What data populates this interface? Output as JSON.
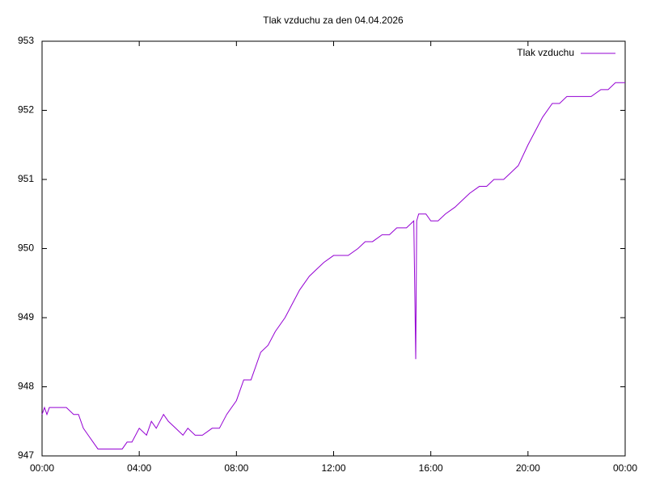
{
  "chart_data": {
    "type": "line",
    "title": "Tlak vzduchu za den 04.04.2026",
    "x": [
      0,
      0.1,
      0.2,
      0.3,
      0.5,
      0.7,
      1.0,
      1.3,
      1.5,
      1.7,
      1.9,
      2.1,
      2.3,
      2.6,
      3.0,
      3.3,
      3.5,
      3.7,
      4.0,
      4.3,
      4.5,
      4.7,
      5.0,
      5.2,
      5.5,
      5.8,
      6.0,
      6.3,
      6.6,
      7.0,
      7.3,
      7.6,
      8.0,
      8.3,
      8.6,
      9.0,
      9.3,
      9.6,
      10.0,
      10.3,
      10.6,
      11.0,
      11.3,
      11.6,
      12.0,
      12.3,
      12.6,
      13.0,
      13.3,
      13.6,
      14.0,
      14.3,
      14.6,
      15.0,
      15.3,
      15.38,
      15.42,
      15.5,
      15.8,
      16.0,
      16.3,
      16.6,
      17.0,
      17.3,
      17.6,
      18.0,
      18.3,
      18.6,
      19.0,
      19.3,
      19.6,
      20.0,
      20.3,
      20.6,
      21.0,
      21.3,
      21.6,
      22.0,
      22.3,
      22.6,
      23.0,
      23.3,
      23.6,
      23.9,
      24.0
    ],
    "series": [
      {
        "name": "Tlak vzduchu",
        "color": "#9400d3",
        "values": [
          947.6,
          947.7,
          947.6,
          947.7,
          947.7,
          947.7,
          947.7,
          947.6,
          947.6,
          947.4,
          947.3,
          947.2,
          947.1,
          947.1,
          947.1,
          947.1,
          947.2,
          947.2,
          947.4,
          947.3,
          947.5,
          947.4,
          947.6,
          947.5,
          947.4,
          947.3,
          947.4,
          947.3,
          947.3,
          947.4,
          947.4,
          947.6,
          947.8,
          948.1,
          948.1,
          948.5,
          948.6,
          948.8,
          949.0,
          949.2,
          949.4,
          949.6,
          949.7,
          949.8,
          949.9,
          949.9,
          949.9,
          950.0,
          950.1,
          950.1,
          950.2,
          950.2,
          950.3,
          950.3,
          950.4,
          948.4,
          950.4,
          950.5,
          950.5,
          950.4,
          950.4,
          950.5,
          950.6,
          950.7,
          950.8,
          950.9,
          950.9,
          951.0,
          951.0,
          951.1,
          951.2,
          951.5,
          951.7,
          951.9,
          952.1,
          952.1,
          952.2,
          952.2,
          952.2,
          952.2,
          952.3,
          952.3,
          952.4,
          952.4,
          952.4
        ]
      }
    ],
    "xlim": [
      0,
      24
    ],
    "xticks": [
      {
        "value": 0,
        "label": "00:00"
      },
      {
        "value": 4,
        "label": "04:00"
      },
      {
        "value": 8,
        "label": "08:00"
      },
      {
        "value": 12,
        "label": "12:00"
      },
      {
        "value": 16,
        "label": "16:00"
      },
      {
        "value": 20,
        "label": "20:00"
      },
      {
        "value": 24,
        "label": "00:00"
      }
    ],
    "ylim": [
      947,
      953
    ],
    "yticks": [
      947,
      948,
      949,
      950,
      951,
      952,
      953
    ],
    "grid": false,
    "legend": "top-right"
  }
}
